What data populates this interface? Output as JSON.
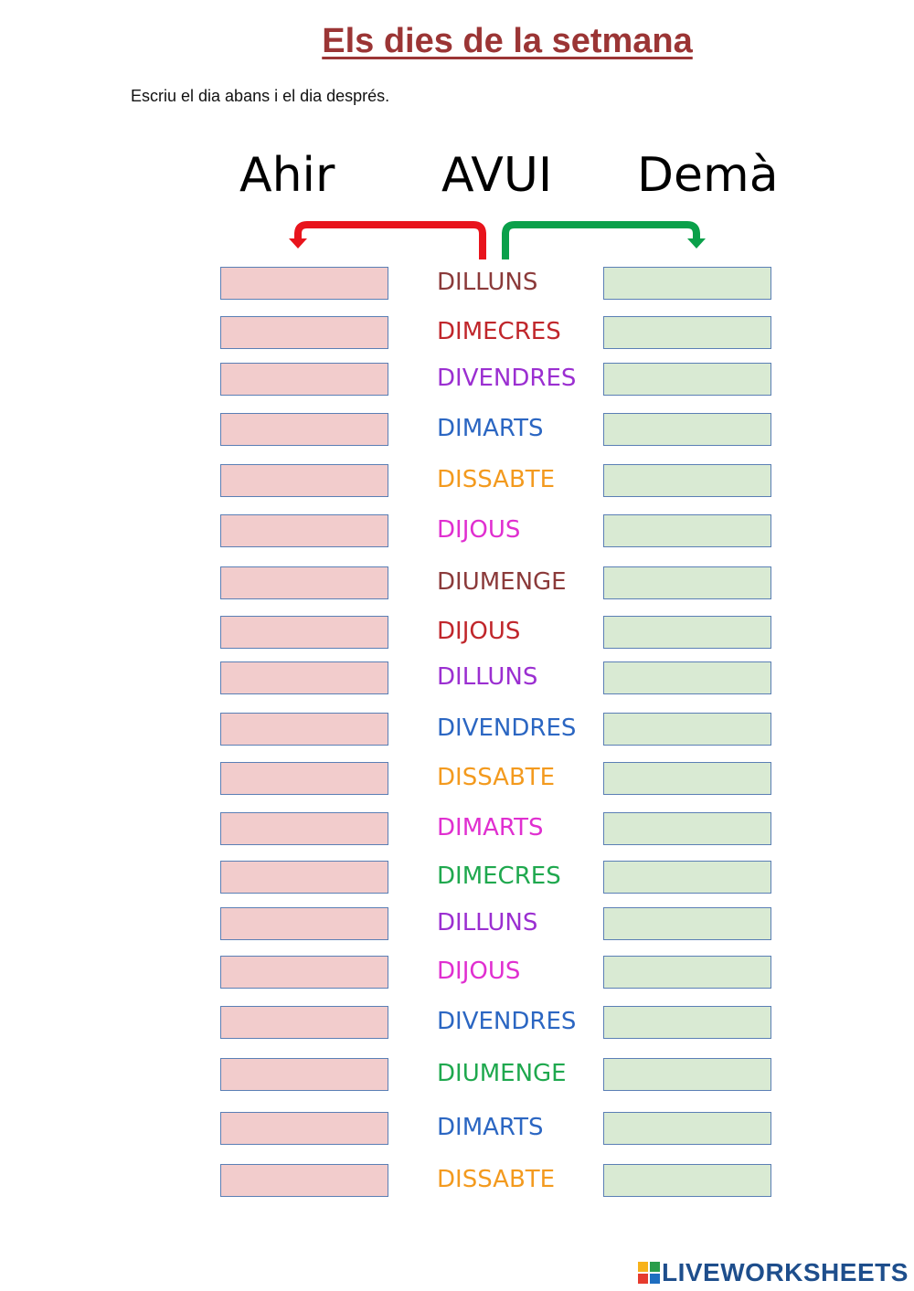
{
  "title": "Els dies de la setmana",
  "instruction": "Escriu el dia abans i el dia després.",
  "headers": {
    "ahir": "Ahir",
    "avui": "AVUI",
    "dema": "Demà"
  },
  "colors": {
    "title": "#9b3535",
    "ahir_box": "#f2cccc",
    "dema_box": "#d9ead3",
    "ahir_arrow": "#e8141c",
    "dema_arrow": "#0aa04a",
    "box_border": "#5b7fb5"
  },
  "rows": [
    {
      "day": "DILLUNS",
      "color": "#8b3a3a",
      "ahir_value": "",
      "dema_value": ""
    },
    {
      "day": "DIMECRES",
      "color": "#c0262b",
      "ahir_value": "",
      "dema_value": ""
    },
    {
      "day": "DIVENDRES",
      "color": "#9b2fd1",
      "ahir_value": "",
      "dema_value": ""
    },
    {
      "day": "DIMARTS",
      "color": "#2b66c2",
      "ahir_value": "",
      "dema_value": ""
    },
    {
      "day": "DISSABTE",
      "color": "#f39a1e",
      "ahir_value": "",
      "dema_value": ""
    },
    {
      "day": "DIJOUS",
      "color": "#e02fd0",
      "ahir_value": "",
      "dema_value": ""
    },
    {
      "day": "DIUMENGE",
      "color": "#8b3a3a",
      "ahir_value": "",
      "dema_value": ""
    },
    {
      "day": "DIJOUS",
      "color": "#c0262b",
      "ahir_value": "",
      "dema_value": ""
    },
    {
      "day": "DILLUNS",
      "color": "#9b2fd1",
      "ahir_value": "",
      "dema_value": ""
    },
    {
      "day": "DIVENDRES",
      "color": "#2b66c2",
      "ahir_value": "",
      "dema_value": ""
    },
    {
      "day": "DISSABTE",
      "color": "#f39a1e",
      "ahir_value": "",
      "dema_value": ""
    },
    {
      "day": "DIMARTS",
      "color": "#e02fd0",
      "ahir_value": "",
      "dema_value": ""
    },
    {
      "day": "DIMECRES",
      "color": "#1fa84e",
      "ahir_value": "",
      "dema_value": ""
    },
    {
      "day": "DILLUNS",
      "color": "#9b2fd1",
      "ahir_value": "",
      "dema_value": ""
    },
    {
      "day": "DIJOUS",
      "color": "#e02fd0",
      "ahir_value": "",
      "dema_value": ""
    },
    {
      "day": "DIVENDRES",
      "color": "#2b66c2",
      "ahir_value": "",
      "dema_value": ""
    },
    {
      "day": "DIUMENGE",
      "color": "#1fa84e",
      "ahir_value": "",
      "dema_value": ""
    },
    {
      "day": "DIMARTS",
      "color": "#2b66c2",
      "ahir_value": "",
      "dema_value": ""
    },
    {
      "day": "DISSABTE",
      "color": "#f39a1e",
      "ahir_value": "",
      "dema_value": ""
    }
  ],
  "brand": {
    "name": "LIVEWORKSHEETS",
    "icon": "liveworksheets-logo-icon"
  }
}
